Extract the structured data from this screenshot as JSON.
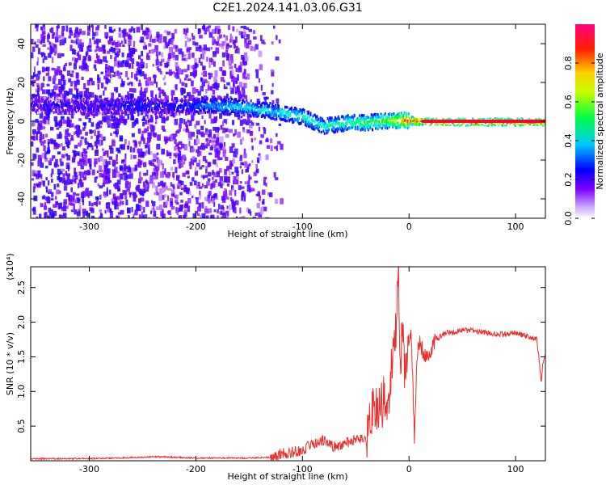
{
  "chart_data": [
    {
      "type": "heatmap",
      "title": "C2E1.2024.141.03.06.G31",
      "xlabel": "Height of straight line (km)",
      "ylabel": "Frequency (Hz)",
      "xlim": [
        -355,
        128
      ],
      "ylim": [
        -50,
        50
      ],
      "x_ticks": [
        -300,
        -200,
        -100,
        0,
        100
      ],
      "y_ticks": [
        -40,
        -20,
        0,
        20,
        40
      ],
      "colorbar": {
        "label": "Normalized spectral amplitude",
        "range": [
          0.0,
          1.0
        ],
        "ticks": [
          0.0,
          0.2,
          0.4,
          0.6,
          0.8
        ],
        "colormap": [
          "#ffffff",
          "#7f00ff",
          "#0000ff",
          "#00ffff",
          "#00ff00",
          "#ffff00",
          "#ff0000",
          "#ff0080"
        ]
      },
      "ridge": {
        "x": [
          -340,
          -300,
          -260,
          -220,
          -190,
          -160,
          -130,
          -100,
          -80,
          -60,
          -40,
          -20,
          0,
          20,
          60,
          100,
          128
        ],
        "y": [
          9,
          8,
          9,
          8,
          9,
          8,
          6,
          3,
          -2,
          0,
          0,
          1,
          1,
          0,
          0,
          0,
          0
        ],
        "amplitude": [
          0.15,
          0.15,
          0.2,
          0.2,
          0.3,
          0.4,
          0.4,
          0.45,
          0.45,
          0.5,
          0.55,
          0.6,
          0.9,
          0.95,
          0.95,
          0.95,
          0.95
        ]
      }
    },
    {
      "type": "line",
      "xlabel": "Height of straight line (km)",
      "ylabel": "SNR (10 * v/v)",
      "y_multiplier": "(x10⁴)",
      "xlim": [
        -355,
        128
      ],
      "ylim": [
        0,
        2.8
      ],
      "x_ticks": [
        -300,
        -200,
        -100,
        0,
        100
      ],
      "y_ticks": [
        0.5,
        1.0,
        1.5,
        2.0,
        2.5
      ],
      "line_color": "#e83030",
      "series": [
        {
          "x": [
            -355,
            -300,
            -250,
            -240,
            -200,
            -150,
            -130,
            -120,
            -100,
            -90,
            -80,
            -70,
            -60,
            -50,
            -40,
            -35,
            -30,
            -25,
            -22,
            -20,
            -18,
            -15,
            -12,
            -10,
            -8,
            -6,
            -4,
            -2,
            0,
            2,
            5,
            8,
            10,
            15,
            20,
            25,
            30,
            35,
            40,
            50,
            60,
            70,
            80,
            90,
            100,
            110,
            120,
            124,
            126,
            128
          ],
          "y": [
            0.03,
            0.03,
            0.05,
            0.06,
            0.04,
            0.04,
            0.05,
            0.1,
            0.15,
            0.25,
            0.3,
            0.2,
            0.25,
            0.3,
            0.3,
            0.7,
            0.8,
            0.8,
            1.0,
            0.6,
            1.1,
            1.6,
            1.9,
            2.75,
            1.4,
            1.9,
            1.3,
            1.5,
            1.8,
            1.9,
            0.35,
            1.6,
            1.7,
            1.5,
            1.6,
            1.75,
            1.8,
            1.85,
            1.85,
            1.88,
            1.88,
            1.85,
            1.83,
            1.82,
            1.85,
            1.8,
            1.75,
            1.15,
            1.45,
            1.5
          ]
        }
      ]
    }
  ]
}
